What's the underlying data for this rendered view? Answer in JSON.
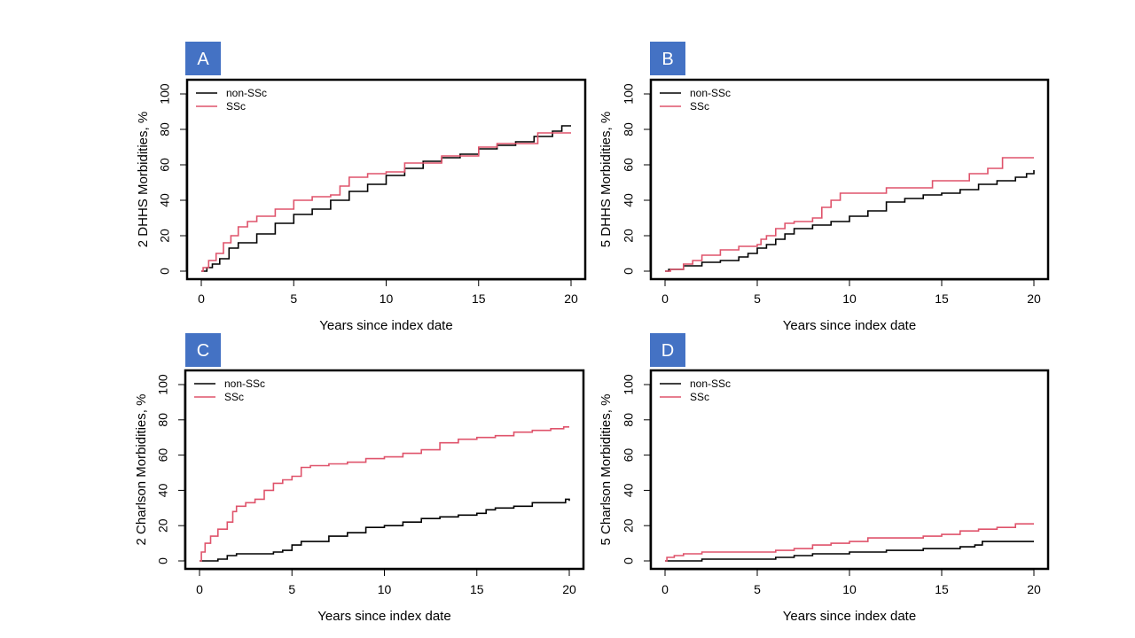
{
  "chart_data": [
    {
      "type": "line",
      "panel_label": "A",
      "xlabel": "Years since index date",
      "ylabel": "2 DHHS Morbidities, %",
      "xlim": [
        0,
        20
      ],
      "ylim": [
        0,
        100
      ],
      "xticks": [
        0,
        5,
        10,
        15,
        20
      ],
      "yticks": [
        0,
        20,
        40,
        60,
        80,
        100
      ],
      "legend_position": "top-left",
      "step": true,
      "series": [
        {
          "name": "non-SSc",
          "color": "#000000",
          "x": [
            0,
            0.3,
            0.6,
            1.0,
            1.5,
            2.0,
            3.0,
            4.0,
            5.0,
            6.0,
            7.0,
            8.0,
            9.0,
            10.0,
            11.0,
            12.0,
            13.0,
            14.0,
            15.0,
            16.0,
            17.0,
            18.0,
            19.0,
            19.5,
            20.0
          ],
          "y": [
            0,
            2,
            4,
            7,
            13,
            16,
            21,
            27,
            32,
            35,
            40,
            45,
            49,
            54,
            58,
            62,
            64,
            66,
            69,
            71,
            73,
            76,
            79,
            82,
            82
          ]
        },
        {
          "name": "SSc",
          "color": "#df536b",
          "x": [
            0,
            0.1,
            0.4,
            0.8,
            1.2,
            1.6,
            2.0,
            2.5,
            3.0,
            4.0,
            5.0,
            6.0,
            7.0,
            7.5,
            8.0,
            9.0,
            10.0,
            11.0,
            13.0,
            15.0,
            16.0,
            17.0,
            17.8,
            18.2,
            20.0
          ],
          "y": [
            0,
            2,
            6,
            10,
            16,
            20,
            25,
            28,
            31,
            35,
            40,
            42,
            43,
            48,
            53,
            55,
            56,
            61,
            65,
            70,
            72,
            72,
            72,
            78,
            78
          ]
        }
      ]
    },
    {
      "type": "line",
      "panel_label": "B",
      "xlabel": "Years since index date",
      "ylabel": "5 DHHS Morbidities, %",
      "xlim": [
        0,
        20
      ],
      "ylim": [
        0,
        100
      ],
      "xticks": [
        0,
        5,
        10,
        15,
        20
      ],
      "yticks": [
        0,
        20,
        40,
        60,
        80,
        100
      ],
      "legend_position": "top-left",
      "step": true,
      "series": [
        {
          "name": "non-SSc",
          "color": "#000000",
          "x": [
            0,
            0.2,
            0.6,
            1.0,
            2.0,
            3.0,
            4.0,
            4.5,
            5.0,
            5.5,
            6.0,
            6.5,
            7.0,
            8.0,
            9.0,
            10.0,
            11.0,
            12.0,
            13.0,
            14.0,
            15.0,
            16.0,
            17.0,
            18.0,
            19.0,
            19.6,
            20.0
          ],
          "y": [
            0,
            1,
            1,
            3,
            5,
            6,
            8,
            10,
            13,
            15,
            18,
            21,
            24,
            26,
            28,
            31,
            34,
            39,
            41,
            43,
            44,
            46,
            49,
            51,
            53,
            55,
            57
          ]
        },
        {
          "name": "SSc",
          "color": "#df536b",
          "x": [
            0,
            0.3,
            1.0,
            1.5,
            2.0,
            3.0,
            4.0,
            5.0,
            5.2,
            5.5,
            6.0,
            6.5,
            7.0,
            8.0,
            8.5,
            9.0,
            9.5,
            10.0,
            12.0,
            14.5,
            15.0,
            16.5,
            17.5,
            18.3,
            20.0
          ],
          "y": [
            0,
            1,
            4,
            6,
            9,
            12,
            14,
            15,
            18,
            20,
            24,
            27,
            28,
            30,
            36,
            40,
            44,
            44,
            47,
            51,
            51,
            55,
            58,
            64,
            64
          ]
        }
      ]
    },
    {
      "type": "line",
      "panel_label": "C",
      "xlabel": "Years since index date",
      "ylabel": "2 Charlson Morbidities, %",
      "xlim": [
        0,
        20
      ],
      "ylim": [
        0,
        100
      ],
      "xticks": [
        0,
        5,
        10,
        15,
        20
      ],
      "yticks": [
        0,
        20,
        40,
        60,
        80,
        100
      ],
      "legend_position": "top-left",
      "step": true,
      "series": [
        {
          "name": "non-SSc",
          "color": "#000000",
          "x": [
            0,
            0.5,
            1.0,
            1.5,
            2.0,
            3.0,
            4.0,
            4.5,
            5.0,
            5.5,
            6.0,
            7.0,
            8.0,
            9.0,
            10.0,
            11.0,
            12.0,
            13.0,
            14.0,
            15.0,
            15.5,
            16.0,
            17.0,
            18.0,
            19.8,
            20.0
          ],
          "y": [
            0,
            0,
            1,
            3,
            4,
            4,
            5,
            6,
            9,
            11,
            11,
            14,
            16,
            19,
            20,
            22,
            24,
            25,
            26,
            27,
            29,
            30,
            31,
            33,
            35,
            34
          ]
        },
        {
          "name": "SSc",
          "color": "#df536b",
          "x": [
            0,
            0.1,
            0.3,
            0.6,
            1.0,
            1.5,
            1.8,
            2.0,
            2.5,
            3.0,
            3.5,
            4.0,
            4.5,
            5.0,
            5.5,
            6.0,
            7.0,
            8.0,
            9.0,
            10.0,
            11.0,
            12.0,
            13.0,
            14.0,
            15.0,
            16.0,
            17.0,
            18.0,
            19.0,
            19.7,
            20.0
          ],
          "y": [
            0,
            5,
            10,
            14,
            18,
            22,
            28,
            31,
            33,
            35,
            40,
            44,
            46,
            48,
            53,
            54,
            55,
            56,
            58,
            59,
            61,
            63,
            67,
            69,
            70,
            71,
            73,
            74,
            75,
            76,
            76
          ]
        }
      ]
    },
    {
      "type": "line",
      "panel_label": "D",
      "xlabel": "Years since index date",
      "ylabel": "5 Charlson Morbidities, %",
      "xlim": [
        0,
        20
      ],
      "ylim": [
        0,
        100
      ],
      "xticks": [
        0,
        5,
        10,
        15,
        20
      ],
      "yticks": [
        0,
        20,
        40,
        60,
        80,
        100
      ],
      "legend_position": "top-left",
      "step": true,
      "series": [
        {
          "name": "non-SSc",
          "color": "#000000",
          "x": [
            0,
            0.3,
            1.0,
            2.0,
            3.0,
            5.0,
            6.0,
            7.0,
            8.0,
            9.0,
            10.0,
            11.0,
            12.0,
            13.0,
            14.0,
            15.0,
            16.0,
            16.8,
            17.2,
            20.0
          ],
          "y": [
            0,
            0,
            0,
            1,
            1,
            1,
            2,
            3,
            4,
            4,
            5,
            5,
            6,
            6,
            7,
            7,
            8,
            9,
            11,
            11
          ]
        },
        {
          "name": "SSc",
          "color": "#df536b",
          "x": [
            0,
            0.1,
            0.5,
            1.0,
            2.0,
            5.0,
            6.0,
            7.0,
            8.0,
            9.0,
            10.0,
            11.0,
            14.0,
            15.0,
            16.0,
            17.0,
            18.0,
            19.0,
            20.0
          ],
          "y": [
            0,
            2,
            3,
            4,
            5,
            5,
            6,
            7,
            9,
            10,
            11,
            13,
            14,
            15,
            17,
            18,
            19,
            21,
            21
          ]
        }
      ]
    }
  ]
}
